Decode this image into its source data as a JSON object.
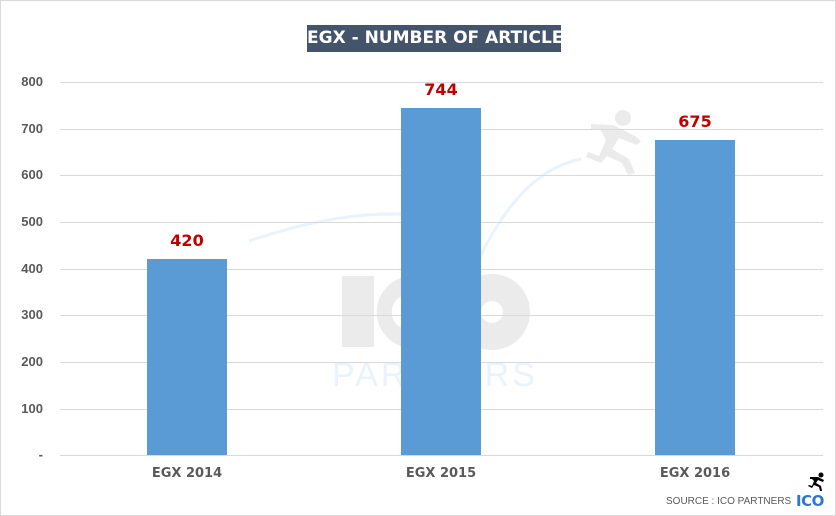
{
  "chart_data": {
    "type": "bar",
    "title": "EGX - NUMBER OF ARTICLES",
    "categories": [
      "EGX 2014",
      "EGX 2015",
      "EGX 2016"
    ],
    "values": [
      420,
      744,
      675
    ],
    "data_labels": [
      "420",
      "744",
      "675"
    ],
    "xlabel": "",
    "ylabel": "",
    "ylim": [
      0,
      800
    ],
    "yticks": [
      0,
      100,
      200,
      300,
      400,
      500,
      600,
      700,
      800
    ],
    "ytick_labels": [
      "-",
      "100",
      "200",
      "300",
      "400",
      "500",
      "600",
      "700",
      "800"
    ],
    "grid": true,
    "legend": null,
    "bar_color": "#5B9BD5",
    "data_label_color": "#C00000"
  },
  "title": "EGX - NUMBER OF ARTICLES",
  "colors": {
    "title_bg": "#44546A",
    "title_text": "#FFFFFF",
    "bar": "#5B9BD5",
    "data_label": "#C00000",
    "axis_text": "#595959",
    "grid": "#D9D9D9",
    "logo": "#2E75D6"
  },
  "footer": {
    "source": "SOURCE : ICO PARTNERS",
    "logo_text": "ICO",
    "logo_icon": "running-man-icon"
  },
  "watermark": {
    "logo_text": "ICO",
    "sub_text": "PARTNERS",
    "icon": "running-man-icon"
  }
}
